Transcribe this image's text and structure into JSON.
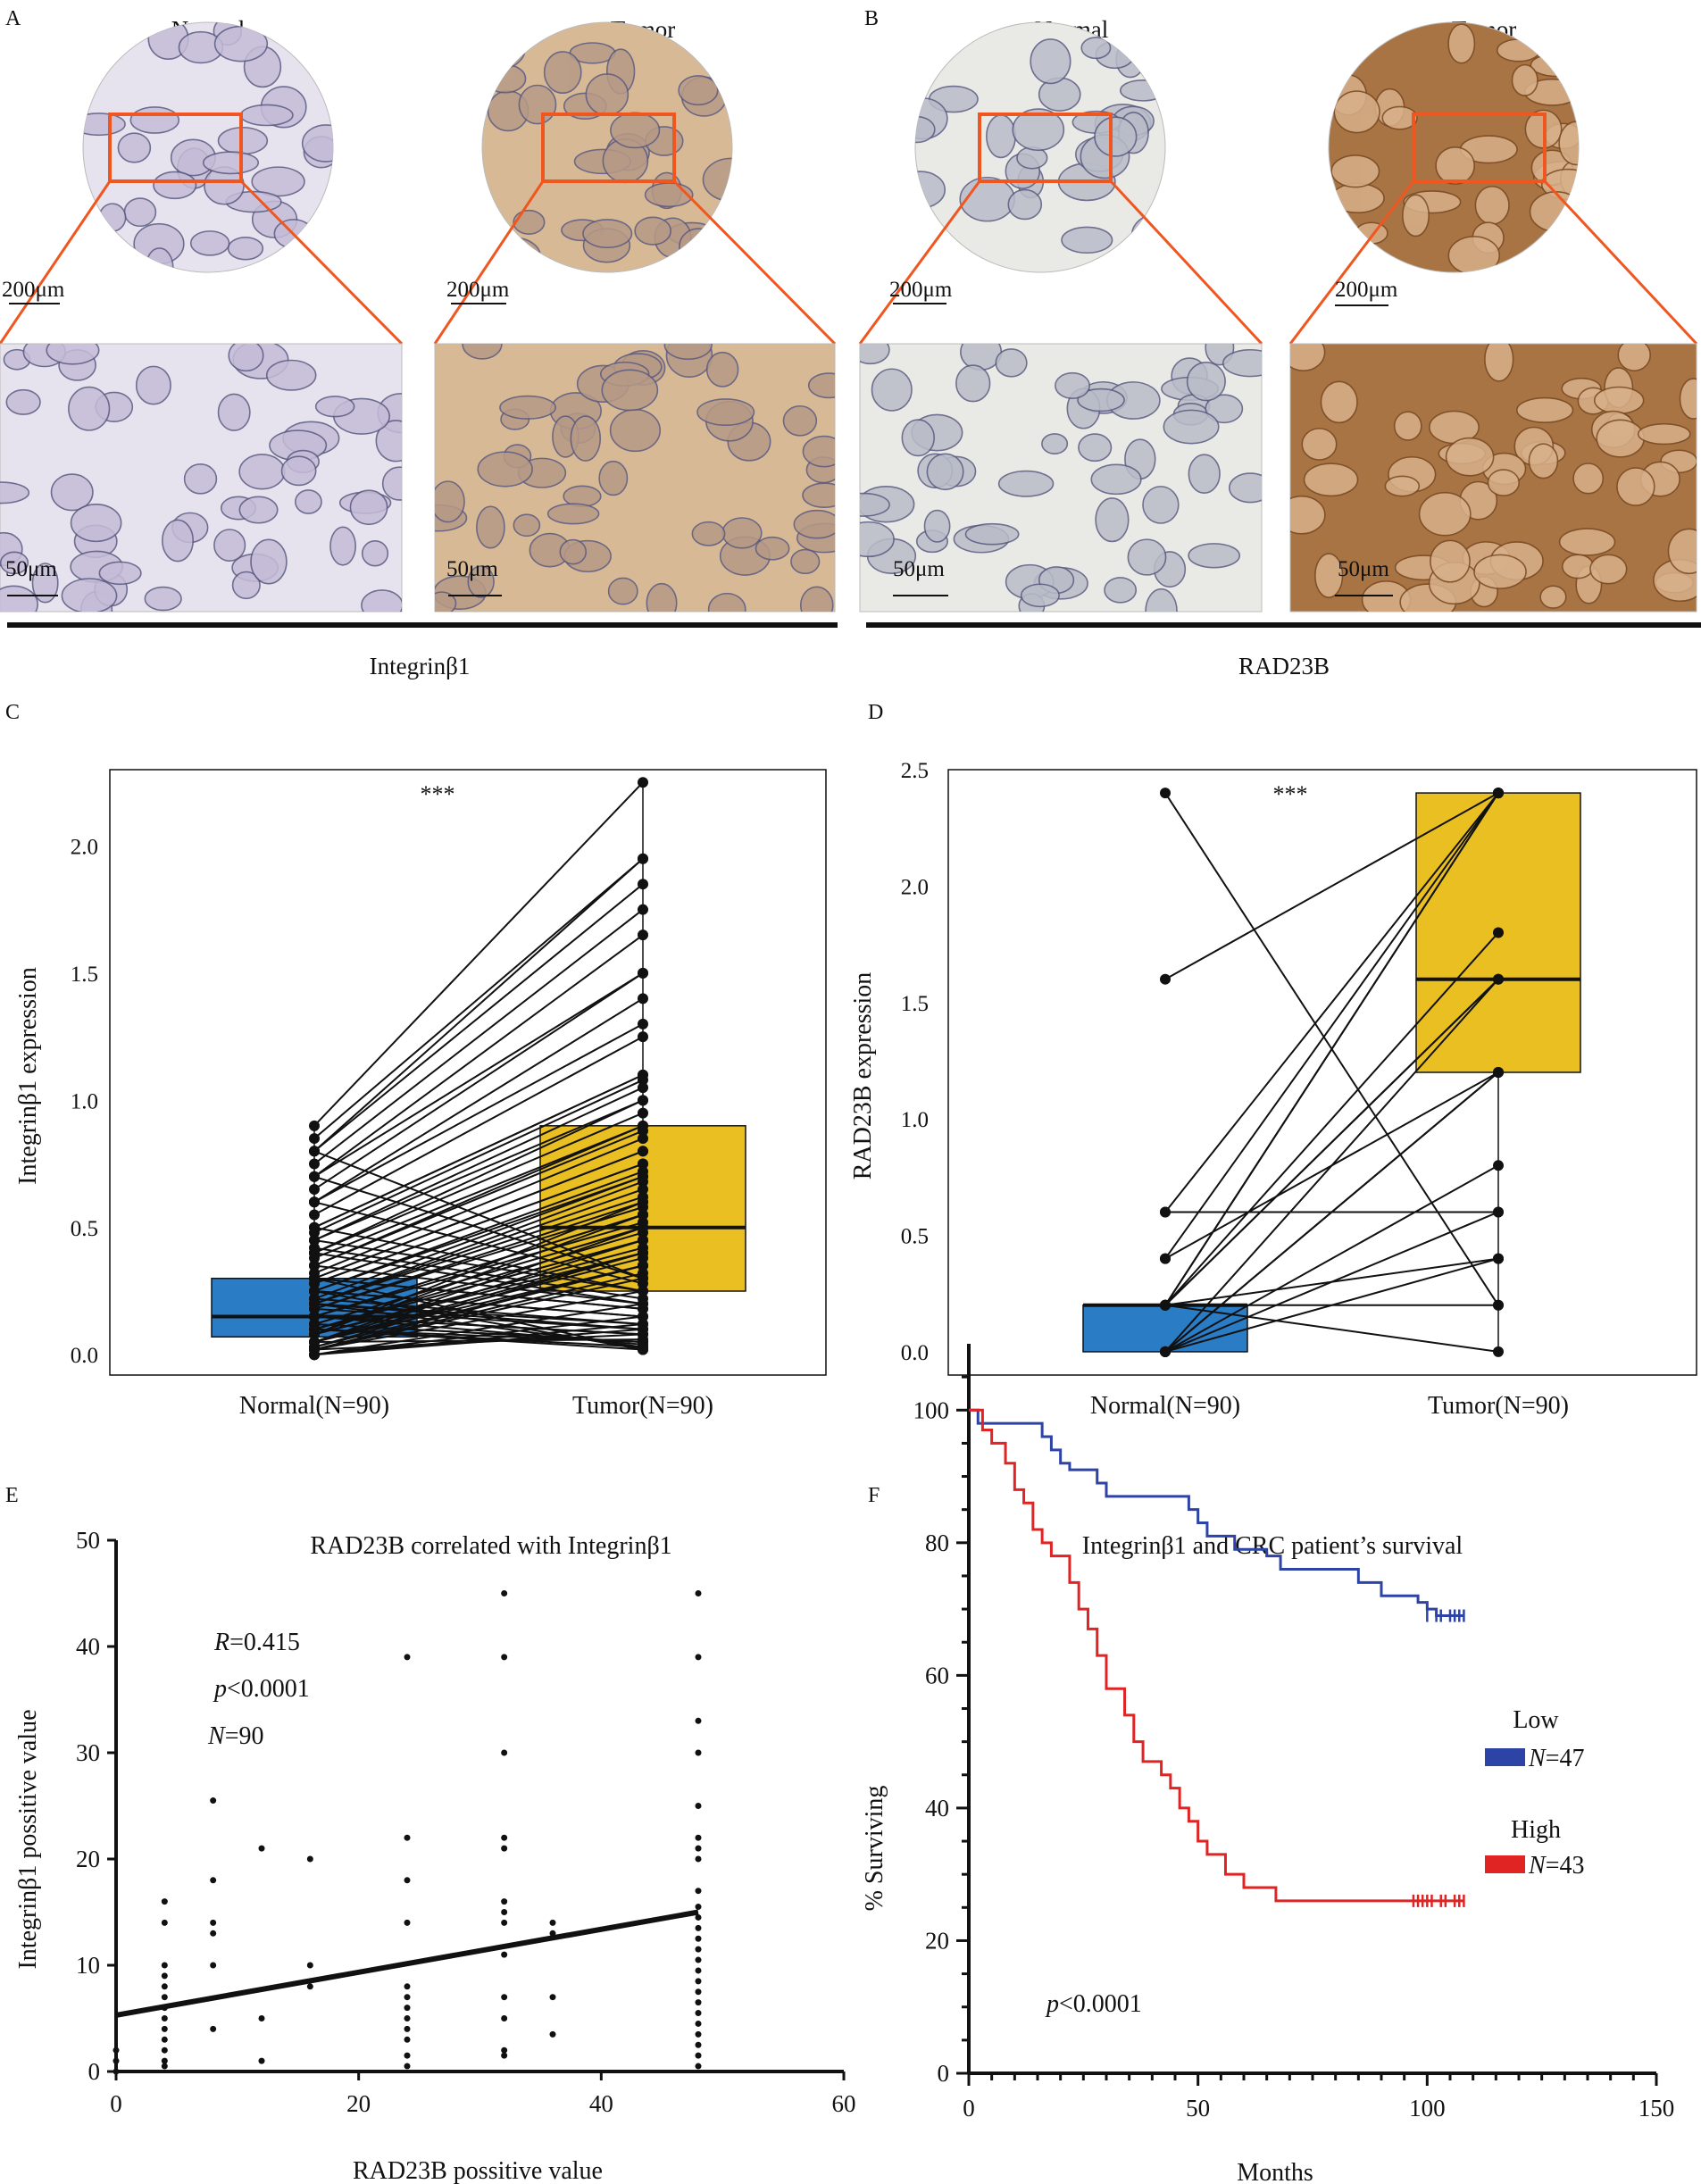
{
  "colors": {
    "normal_box": "#2a7cc4",
    "tumor_box": "#e9bf22",
    "low": "#2d44a6",
    "high": "#e02323",
    "zoom": "#f0561f",
    "he_normal_bg": "#e7e3ee",
    "he_normal_gland": "#c5bcd7",
    "he_tumor_bg": "#d7b996",
    "he_tumor_gland": "#b79a86",
    "rad_normal_bg": "#e9e9e6",
    "rad_normal_gland": "#b9bdc8",
    "rad_tumor_bg": "#a97444",
    "rad_tumor_gland": "#d8b08a"
  },
  "histology": {
    "A": {
      "letter": "A",
      "marker": "Integrinβ1",
      "panels": [
        {
          "header": "Normal",
          "scale_top": "200μm",
          "scale_bottom": "50μm",
          "stain": "he_normal"
        },
        {
          "header": "Tumor",
          "scale_top": "200μm",
          "scale_bottom": "50μm",
          "stain": "he_tumor"
        }
      ]
    },
    "B": {
      "letter": "B",
      "marker": "RAD23B",
      "panels": [
        {
          "header": "Normal",
          "scale_top": "200μm",
          "scale_bottom": "50μm",
          "stain": "rad_normal"
        },
        {
          "header": "Tumor",
          "scale_top": "200μm",
          "scale_bottom": "50μm",
          "stain": "rad_tumor"
        }
      ]
    }
  },
  "chart_data": [
    {
      "id": "C",
      "letter": "C",
      "type": "box-paired",
      "ylabel": "Integrinβ1 expression",
      "categories": [
        "Normal(N=90)",
        "Tumor(N=90)"
      ],
      "yticks": [
        0.0,
        0.5,
        1.0,
        1.5,
        2.0
      ],
      "ytick_labels": [
        "0.0",
        "0.5",
        "1.0",
        "1.5",
        "2.0"
      ],
      "ylim": [
        -0.08,
        2.3
      ],
      "significance": "***",
      "boxes": [
        {
          "q1": 0.07,
          "median": 0.15,
          "q3": 0.3,
          "min": 0.0,
          "max": 0.9
        },
        {
          "q1": 0.25,
          "median": 0.5,
          "q3": 0.9,
          "min": 0.0,
          "max": 2.25
        }
      ],
      "pairs": [
        [
          0.9,
          2.25
        ],
        [
          0.85,
          1.95
        ],
        [
          0.8,
          1.95
        ],
        [
          0.8,
          1.85
        ],
        [
          0.75,
          1.75
        ],
        [
          0.7,
          1.65
        ],
        [
          0.7,
          1.5
        ],
        [
          0.65,
          1.5
        ],
        [
          0.6,
          1.4
        ],
        [
          0.6,
          1.3
        ],
        [
          0.55,
          1.25
        ],
        [
          0.5,
          1.1
        ],
        [
          0.5,
          1.1
        ],
        [
          0.48,
          1.08
        ],
        [
          0.45,
          1.05
        ],
        [
          0.45,
          1.0
        ],
        [
          0.4,
          1.0
        ],
        [
          0.4,
          0.95
        ],
        [
          0.38,
          0.9
        ],
        [
          0.35,
          0.9
        ],
        [
          0.35,
          0.88
        ],
        [
          0.32,
          0.85
        ],
        [
          0.3,
          0.8
        ],
        [
          0.3,
          0.8
        ],
        [
          0.28,
          0.75
        ],
        [
          0.28,
          0.75
        ],
        [
          0.25,
          0.72
        ],
        [
          0.25,
          0.7
        ],
        [
          0.22,
          0.7
        ],
        [
          0.2,
          0.68
        ],
        [
          0.2,
          0.65
        ],
        [
          0.2,
          0.62
        ],
        [
          0.18,
          0.6
        ],
        [
          0.18,
          0.58
        ],
        [
          0.15,
          0.55
        ],
        [
          0.15,
          0.55
        ],
        [
          0.15,
          0.52
        ],
        [
          0.12,
          0.5
        ],
        [
          0.12,
          0.5
        ],
        [
          0.1,
          0.48
        ],
        [
          0.1,
          0.45
        ],
        [
          0.1,
          0.45
        ],
        [
          0.08,
          0.42
        ],
        [
          0.08,
          0.4
        ],
        [
          0.05,
          0.4
        ],
        [
          0.05,
          0.38
        ],
        [
          0.05,
          0.35
        ],
        [
          0.02,
          0.35
        ],
        [
          0.02,
          0.32
        ],
        [
          0.8,
          0.3
        ],
        [
          0.7,
          0.3
        ],
        [
          0.6,
          0.28
        ],
        [
          0.5,
          0.25
        ],
        [
          0.45,
          0.25
        ],
        [
          0.42,
          0.22
        ],
        [
          0.4,
          0.2
        ],
        [
          0.35,
          0.2
        ],
        [
          0.3,
          0.18
        ],
        [
          0.3,
          0.18
        ],
        [
          0.25,
          0.15
        ],
        [
          0.25,
          0.15
        ],
        [
          0.22,
          0.12
        ],
        [
          0.2,
          0.12
        ],
        [
          0.2,
          0.1
        ],
        [
          0.18,
          0.1
        ],
        [
          0.15,
          0.08
        ],
        [
          0.15,
          0.08
        ],
        [
          0.12,
          0.05
        ],
        [
          0.12,
          0.05
        ],
        [
          0.1,
          0.03
        ],
        [
          0.1,
          0.02
        ],
        [
          0.08,
          0.6
        ],
        [
          0.08,
          0.55
        ],
        [
          0.05,
          0.5
        ],
        [
          0.05,
          0.45
        ],
        [
          0.03,
          0.4
        ],
        [
          0.03,
          0.35
        ],
        [
          0.02,
          0.3
        ],
        [
          0.02,
          0.25
        ],
        [
          0.0,
          0.2
        ],
        [
          0.0,
          0.15
        ],
        [
          0.0,
          0.12
        ],
        [
          0.0,
          0.1
        ],
        [
          0.02,
          0.08
        ],
        [
          0.05,
          0.06
        ],
        [
          0.1,
          0.05
        ],
        [
          0.15,
          0.04
        ],
        [
          0.2,
          0.03
        ],
        [
          0.25,
          0.02
        ],
        [
          0.3,
          0.02
        ]
      ]
    },
    {
      "id": "D",
      "letter": "D",
      "type": "box-paired",
      "ylabel": "RAD23B expression",
      "categories": [
        "Normal(N=90)",
        "Tumor(N=90)"
      ],
      "yticks": [
        0.0,
        0.5,
        1.0,
        1.5,
        2.0,
        2.5
      ],
      "ytick_labels": [
        "0.0",
        "0.5",
        "1.0",
        "1.5",
        "2.0",
        "2.5"
      ],
      "ylim": [
        -0.1,
        2.5
      ],
      "significance": "***",
      "boxes": [
        {
          "q1": 0.0,
          "median": 0.2,
          "q3": 0.2,
          "min": 0.0,
          "max": 0.2
        },
        {
          "q1": 1.2,
          "median": 1.6,
          "q3": 2.4,
          "min": 0.0,
          "max": 2.4
        }
      ],
      "pairs": [
        [
          2.4,
          0.2
        ],
        [
          1.6,
          2.4
        ],
        [
          0.6,
          2.4
        ],
        [
          0.4,
          2.4
        ],
        [
          0.2,
          2.4
        ],
        [
          0.2,
          1.8
        ],
        [
          0.2,
          1.6
        ],
        [
          0.2,
          1.6
        ],
        [
          0.0,
          1.6
        ],
        [
          0.0,
          1.2
        ],
        [
          0.0,
          1.2
        ],
        [
          0.0,
          0.8
        ],
        [
          0.6,
          0.6
        ],
        [
          0.2,
          0.4
        ],
        [
          0.0,
          0.4
        ],
        [
          0.2,
          0.2
        ],
        [
          0.2,
          0.0
        ],
        [
          0.0,
          0.6
        ],
        [
          0.4,
          1.2
        ],
        [
          0.2,
          2.4
        ]
      ]
    },
    {
      "id": "E",
      "letter": "E",
      "type": "scatter",
      "title": "RAD23B correlated with Integrinβ1",
      "xlabel": "RAD23B possitive  value",
      "ylabel": "Integrinβ1  possitive  value",
      "xlim": [
        0,
        60
      ],
      "ylim": [
        0,
        50
      ],
      "xticks": [
        0,
        20,
        40,
        60
      ],
      "yticks": [
        0,
        10,
        20,
        30,
        40,
        50
      ],
      "annotation_R": "R",
      "annotation_R_value": "=0.415",
      "annotation_p": "p",
      "annotation_p_value": "<0.0001",
      "annotation_N": "N",
      "annotation_N_value": "=90",
      "regression": {
        "x0": 0,
        "y0": 5.3,
        "x1": 48,
        "y1": 15.0
      },
      "points": [
        [
          0,
          0
        ],
        [
          0,
          1
        ],
        [
          0,
          2
        ],
        [
          4,
          0.5
        ],
        [
          4,
          1
        ],
        [
          4,
          2
        ],
        [
          4,
          3
        ],
        [
          4,
          4
        ],
        [
          4,
          5
        ],
        [
          4,
          6
        ],
        [
          4,
          7
        ],
        [
          4,
          8
        ],
        [
          4,
          9
        ],
        [
          4,
          10
        ],
        [
          4,
          14
        ],
        [
          4,
          16
        ],
        [
          8,
          4
        ],
        [
          8,
          10
        ],
        [
          8,
          13
        ],
        [
          8,
          14
        ],
        [
          8,
          18
        ],
        [
          8,
          25.5
        ],
        [
          12,
          1
        ],
        [
          12,
          5
        ],
        [
          12,
          21
        ],
        [
          16,
          8
        ],
        [
          16,
          10
        ],
        [
          16,
          20
        ],
        [
          24,
          0.5
        ],
        [
          24,
          1.5
        ],
        [
          24,
          3
        ],
        [
          24,
          4
        ],
        [
          24,
          5
        ],
        [
          24,
          6
        ],
        [
          24,
          7
        ],
        [
          24,
          8
        ],
        [
          24,
          14
        ],
        [
          24,
          18
        ],
        [
          24,
          22
        ],
        [
          24,
          39
        ],
        [
          32,
          1.5
        ],
        [
          32,
          2
        ],
        [
          32,
          5
        ],
        [
          32,
          7
        ],
        [
          32,
          11
        ],
        [
          32,
          14
        ],
        [
          32,
          15
        ],
        [
          32,
          16
        ],
        [
          32,
          21
        ],
        [
          32,
          22
        ],
        [
          32,
          30
        ],
        [
          32,
          39
        ],
        [
          32,
          45
        ],
        [
          36,
          3.5
        ],
        [
          36,
          7
        ],
        [
          36,
          13
        ],
        [
          36,
          14
        ],
        [
          48,
          0.5
        ],
        [
          48,
          1.5
        ],
        [
          48,
          2.5
        ],
        [
          48,
          3.5
        ],
        [
          48,
          4.5
        ],
        [
          48,
          5.5
        ],
        [
          48,
          6.5
        ],
        [
          48,
          7.5
        ],
        [
          48,
          8.5
        ],
        [
          48,
          9.5
        ],
        [
          48,
          10.5
        ],
        [
          48,
          11.5
        ],
        [
          48,
          12.5
        ],
        [
          48,
          13.5
        ],
        [
          48,
          14.5
        ],
        [
          48,
          15.5
        ],
        [
          48,
          17
        ],
        [
          48,
          20
        ],
        [
          48,
          21
        ],
        [
          48,
          22
        ],
        [
          48,
          25
        ],
        [
          48,
          30
        ],
        [
          48,
          33
        ],
        [
          48,
          39
        ],
        [
          48,
          45
        ]
      ]
    },
    {
      "id": "F",
      "letter": "F",
      "type": "line",
      "title": "Integrinβ1 and CRC patient’s survival",
      "xlabel": "Months",
      "ylabel": "% Surviving",
      "xlim": [
        0,
        150
      ],
      "ylim": [
        0,
        110
      ],
      "xticks": [
        0,
        50,
        100,
        150
      ],
      "yticks": [
        0,
        20,
        40,
        60,
        80,
        100
      ],
      "p_label": "p",
      "p_value": "<0.0001",
      "series": [
        {
          "name": "Low",
          "n_label": "N",
          "n_value": "=47",
          "color_key": "low",
          "x": [
            0,
            2,
            15,
            16,
            18,
            20,
            22,
            28,
            30,
            35,
            48,
            50,
            52,
            58,
            65,
            68,
            85,
            90,
            98,
            100,
            102,
            108
          ],
          "y": [
            100,
            98,
            98,
            96,
            94,
            92,
            91,
            89,
            87,
            87,
            85,
            83,
            81,
            79,
            78,
            76,
            74,
            72,
            71,
            70,
            69,
            69
          ],
          "censor_x": [
            100,
            102,
            103,
            105,
            106,
            107,
            108
          ]
        },
        {
          "name": "High",
          "n_label": "N",
          "n_value": "=43",
          "color_key": "high",
          "x": [
            0,
            3,
            5,
            8,
            10,
            12,
            14,
            16,
            18,
            22,
            24,
            26,
            28,
            30,
            34,
            36,
            38,
            42,
            44,
            46,
            48,
            50,
            52,
            56,
            60,
            67,
            95,
            100,
            108
          ],
          "y": [
            100,
            97,
            95,
            92,
            88,
            86,
            82,
            80,
            78,
            74,
            70,
            67,
            63,
            58,
            54,
            50,
            47,
            45,
            43,
            40,
            38,
            35,
            33,
            30,
            28,
            26,
            26,
            26,
            26
          ],
          "censor_x": [
            97,
            98,
            99,
            100,
            101,
            103,
            104,
            106,
            107,
            108
          ]
        }
      ]
    }
  ]
}
